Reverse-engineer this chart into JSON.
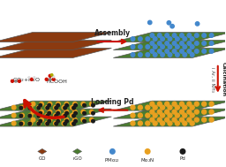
{
  "bg_color": "#ffffff",
  "go_color": "#8B3A10",
  "rgo_color": "#4a7c2f",
  "pmo_color": "#4488cc",
  "mo2n_color": "#E8A020",
  "pd_color": "#1a1a1a",
  "arrow_red": "#cc1100",
  "arrow_dark": "#333333",
  "text_assembly": "Assembly",
  "text_calcination": "Calcination",
  "text_loading": "Loading Pd",
  "text_condition": "i Ar, ii NH₃",
  "legend_labels": [
    "GO",
    "rGO",
    "PMo₁₂",
    "Mo₂N",
    "Pd"
  ]
}
